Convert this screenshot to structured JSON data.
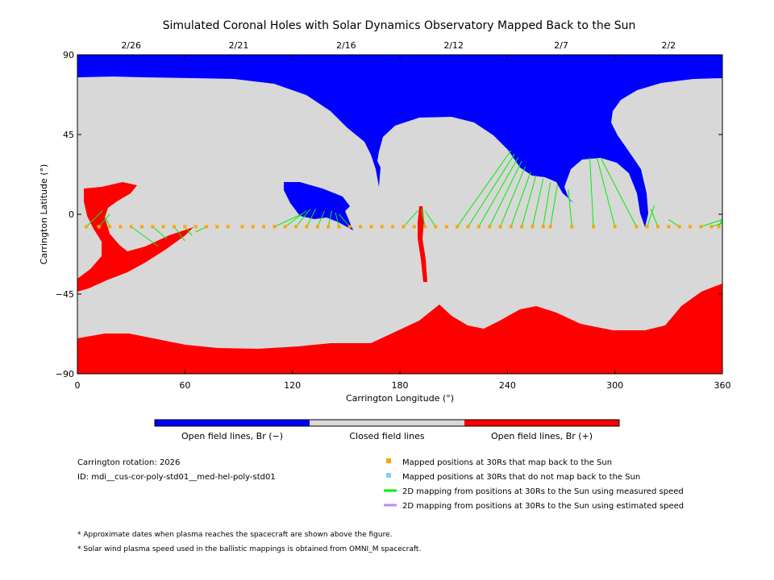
{
  "title": "Simulated Coronal Holes with Solar Dynamics Observatory Mapped Back to the Sun",
  "top_dates": [
    {
      "label": "2/26",
      "lon": 30
    },
    {
      "label": "2/21",
      "lon": 90
    },
    {
      "label": "2/16",
      "lon": 150
    },
    {
      "label": "2/12",
      "lon": 210
    },
    {
      "label": "2/7",
      "lon": 270
    },
    {
      "label": "2/2",
      "lon": 330
    }
  ],
  "chart_data": {
    "type": "map",
    "xlabel": "Carrington Longitude (°)",
    "ylabel": "Carrington Latitude (°)",
    "xlim": [
      0,
      360
    ],
    "ylim": [
      -90,
      90
    ],
    "xticks": [
      0,
      60,
      120,
      180,
      240,
      300,
      360
    ],
    "yticks": [
      -90,
      -45,
      0,
      45,
      90
    ],
    "ytick_labels": [
      "−90",
      "−45",
      "0",
      "45",
      "90"
    ],
    "colors": {
      "open_negative": "#0000ff",
      "closed": "#d8d8d8",
      "open_positive": "#ff0000",
      "mapped": "#ffa500",
      "unmapped": "#87cefa",
      "measured_line": "#00ee00",
      "estimated_line": "#bb88ff"
    },
    "mapped_points_lat": -7,
    "mapped_points_lon": [
      5,
      12,
      18,
      24,
      30,
      36,
      42,
      48,
      54,
      60,
      66,
      72,
      78,
      84,
      92,
      98,
      104,
      110,
      116,
      122,
      128,
      134,
      140,
      146,
      152,
      158,
      164,
      170,
      176,
      182,
      188,
      194,
      200,
      206,
      212,
      218,
      224,
      230,
      236,
      242,
      248,
      254,
      260,
      264,
      276,
      288,
      300,
      312,
      318,
      324,
      330,
      336,
      342,
      348,
      354,
      358
    ],
    "field_lines": [
      {
        "from": [
          5,
          -7
        ],
        "to": [
          14,
          2
        ]
      },
      {
        "from": [
          12,
          -7
        ],
        "to": [
          18,
          0
        ]
      },
      {
        "from": [
          18,
          -7
        ],
        "to": [
          16,
          -2
        ]
      },
      {
        "from": [
          30,
          -7
        ],
        "to": [
          45,
          -18
        ]
      },
      {
        "from": [
          42,
          -7
        ],
        "to": [
          50,
          -14
        ]
      },
      {
        "from": [
          54,
          -7
        ],
        "to": [
          60,
          -15
        ]
      },
      {
        "from": [
          60,
          -7
        ],
        "to": [
          64,
          -12
        ]
      },
      {
        "from": [
          72,
          -7
        ],
        "to": [
          66,
          -10
        ]
      },
      {
        "from": [
          110,
          -7
        ],
        "to": [
          125,
          0
        ]
      },
      {
        "from": [
          116,
          -7
        ],
        "to": [
          128,
          2
        ]
      },
      {
        "from": [
          122,
          -7
        ],
        "to": [
          130,
          3
        ]
      },
      {
        "from": [
          128,
          -7
        ],
        "to": [
          133,
          3
        ]
      },
      {
        "from": [
          134,
          -7
        ],
        "to": [
          138,
          2
        ]
      },
      {
        "from": [
          140,
          -7
        ],
        "to": [
          142,
          2
        ]
      },
      {
        "from": [
          146,
          -7
        ],
        "to": [
          144,
          1
        ]
      },
      {
        "from": [
          152,
          -7
        ],
        "to": [
          146,
          0
        ]
      },
      {
        "from": [
          182,
          -7
        ],
        "to": [
          190,
          2
        ]
      },
      {
        "from": [
          194,
          -7
        ],
        "to": [
          192,
          3
        ]
      },
      {
        "from": [
          200,
          -7
        ],
        "to": [
          194,
          2
        ]
      },
      {
        "from": [
          212,
          -7
        ],
        "to": [
          242,
          36
        ]
      },
      {
        "from": [
          218,
          -7
        ],
        "to": [
          244,
          34
        ]
      },
      {
        "from": [
          224,
          -7
        ],
        "to": [
          246,
          32
        ]
      },
      {
        "from": [
          230,
          -7
        ],
        "to": [
          248,
          30
        ]
      },
      {
        "from": [
          236,
          -7
        ],
        "to": [
          250,
          27
        ]
      },
      {
        "from": [
          242,
          -7
        ],
        "to": [
          253,
          24
        ]
      },
      {
        "from": [
          248,
          -7
        ],
        "to": [
          256,
          22
        ]
      },
      {
        "from": [
          254,
          -7
        ],
        "to": [
          260,
          20
        ]
      },
      {
        "from": [
          260,
          -7
        ],
        "to": [
          264,
          18
        ]
      },
      {
        "from": [
          264,
          -7
        ],
        "to": [
          268,
          17
        ]
      },
      {
        "from": [
          276,
          -7
        ],
        "to": [
          274,
          14
        ]
      },
      {
        "from": [
          288,
          -7
        ],
        "to": [
          286,
          32
        ]
      },
      {
        "from": [
          300,
          -7
        ],
        "to": [
          290,
          32
        ]
      },
      {
        "from": [
          312,
          -7
        ],
        "to": [
          292,
          32
        ]
      },
      {
        "from": [
          318,
          -7
        ],
        "to": [
          322,
          5
        ]
      },
      {
        "from": [
          324,
          -7
        ],
        "to": [
          320,
          3
        ]
      },
      {
        "from": [
          336,
          -7
        ],
        "to": [
          330,
          -3
        ]
      },
      {
        "from": [
          348,
          -7
        ],
        "to": [
          360,
          -3
        ]
      },
      {
        "from": [
          354,
          -7
        ],
        "to": [
          360,
          -5
        ]
      },
      {
        "from": [
          358,
          -7
        ],
        "to": [
          360,
          -2
        ]
      }
    ]
  },
  "colorbar": {
    "labels": [
      "Open field lines, Br (−)",
      "Closed field lines",
      "Open field lines, Br (+)"
    ],
    "colors": [
      "#0000ff",
      "#d8d8d8",
      "#ff0000"
    ]
  },
  "info": {
    "rotation": "Carrington rotation: 2026",
    "id": "ID: mdi__cus-cor-poly-std01__med-hel-poly-std01"
  },
  "legend": [
    {
      "label": "Mapped positions at 30Rs that map back to the Sun",
      "color": "#ffa500",
      "kind": "square"
    },
    {
      "label": "Mapped positions at 30Rs that do not map back to the Sun",
      "color": "#87cefa",
      "kind": "square"
    },
    {
      "label": "2D mapping from positions at 30Rs to the Sun using measured speed",
      "color": "#00ee00",
      "kind": "line"
    },
    {
      "label": "2D mapping from positions at 30Rs to the Sun using estimated speed",
      "color": "#bb88ff",
      "kind": "line"
    }
  ],
  "notes": [
    "* Approximate dates when plasma reaches the spacecraft are shown above the figure.",
    "* Solar wind plasma speed used in the ballistic mappings is obtained from OMNI_M spacecraft."
  ]
}
